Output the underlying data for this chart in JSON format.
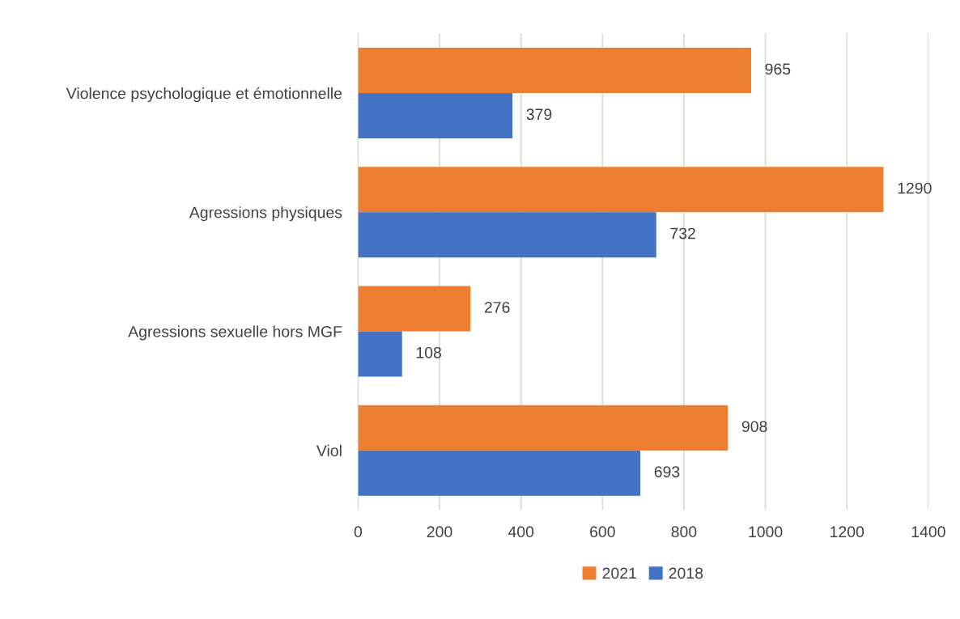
{
  "chart_data": {
    "type": "bar",
    "orientation": "horizontal",
    "categories": [
      "Violence psychologique et émotionnelle",
      "Agressions physiques",
      "Agressions sexuelle hors MGF",
      "Viol"
    ],
    "series": [
      {
        "name": "2021",
        "color": "#ed7d31",
        "values": [
          965,
          1290,
          276,
          908
        ]
      },
      {
        "name": "2018",
        "color": "#4472c4",
        "values": [
          379,
          732,
          108,
          693
        ]
      }
    ],
    "xlim": [
      0,
      1400
    ],
    "xticks": [
      0,
      200,
      400,
      600,
      800,
      1000,
      1200,
      1400
    ],
    "grid": "x",
    "legend": "bottom",
    "data_labels": true
  }
}
